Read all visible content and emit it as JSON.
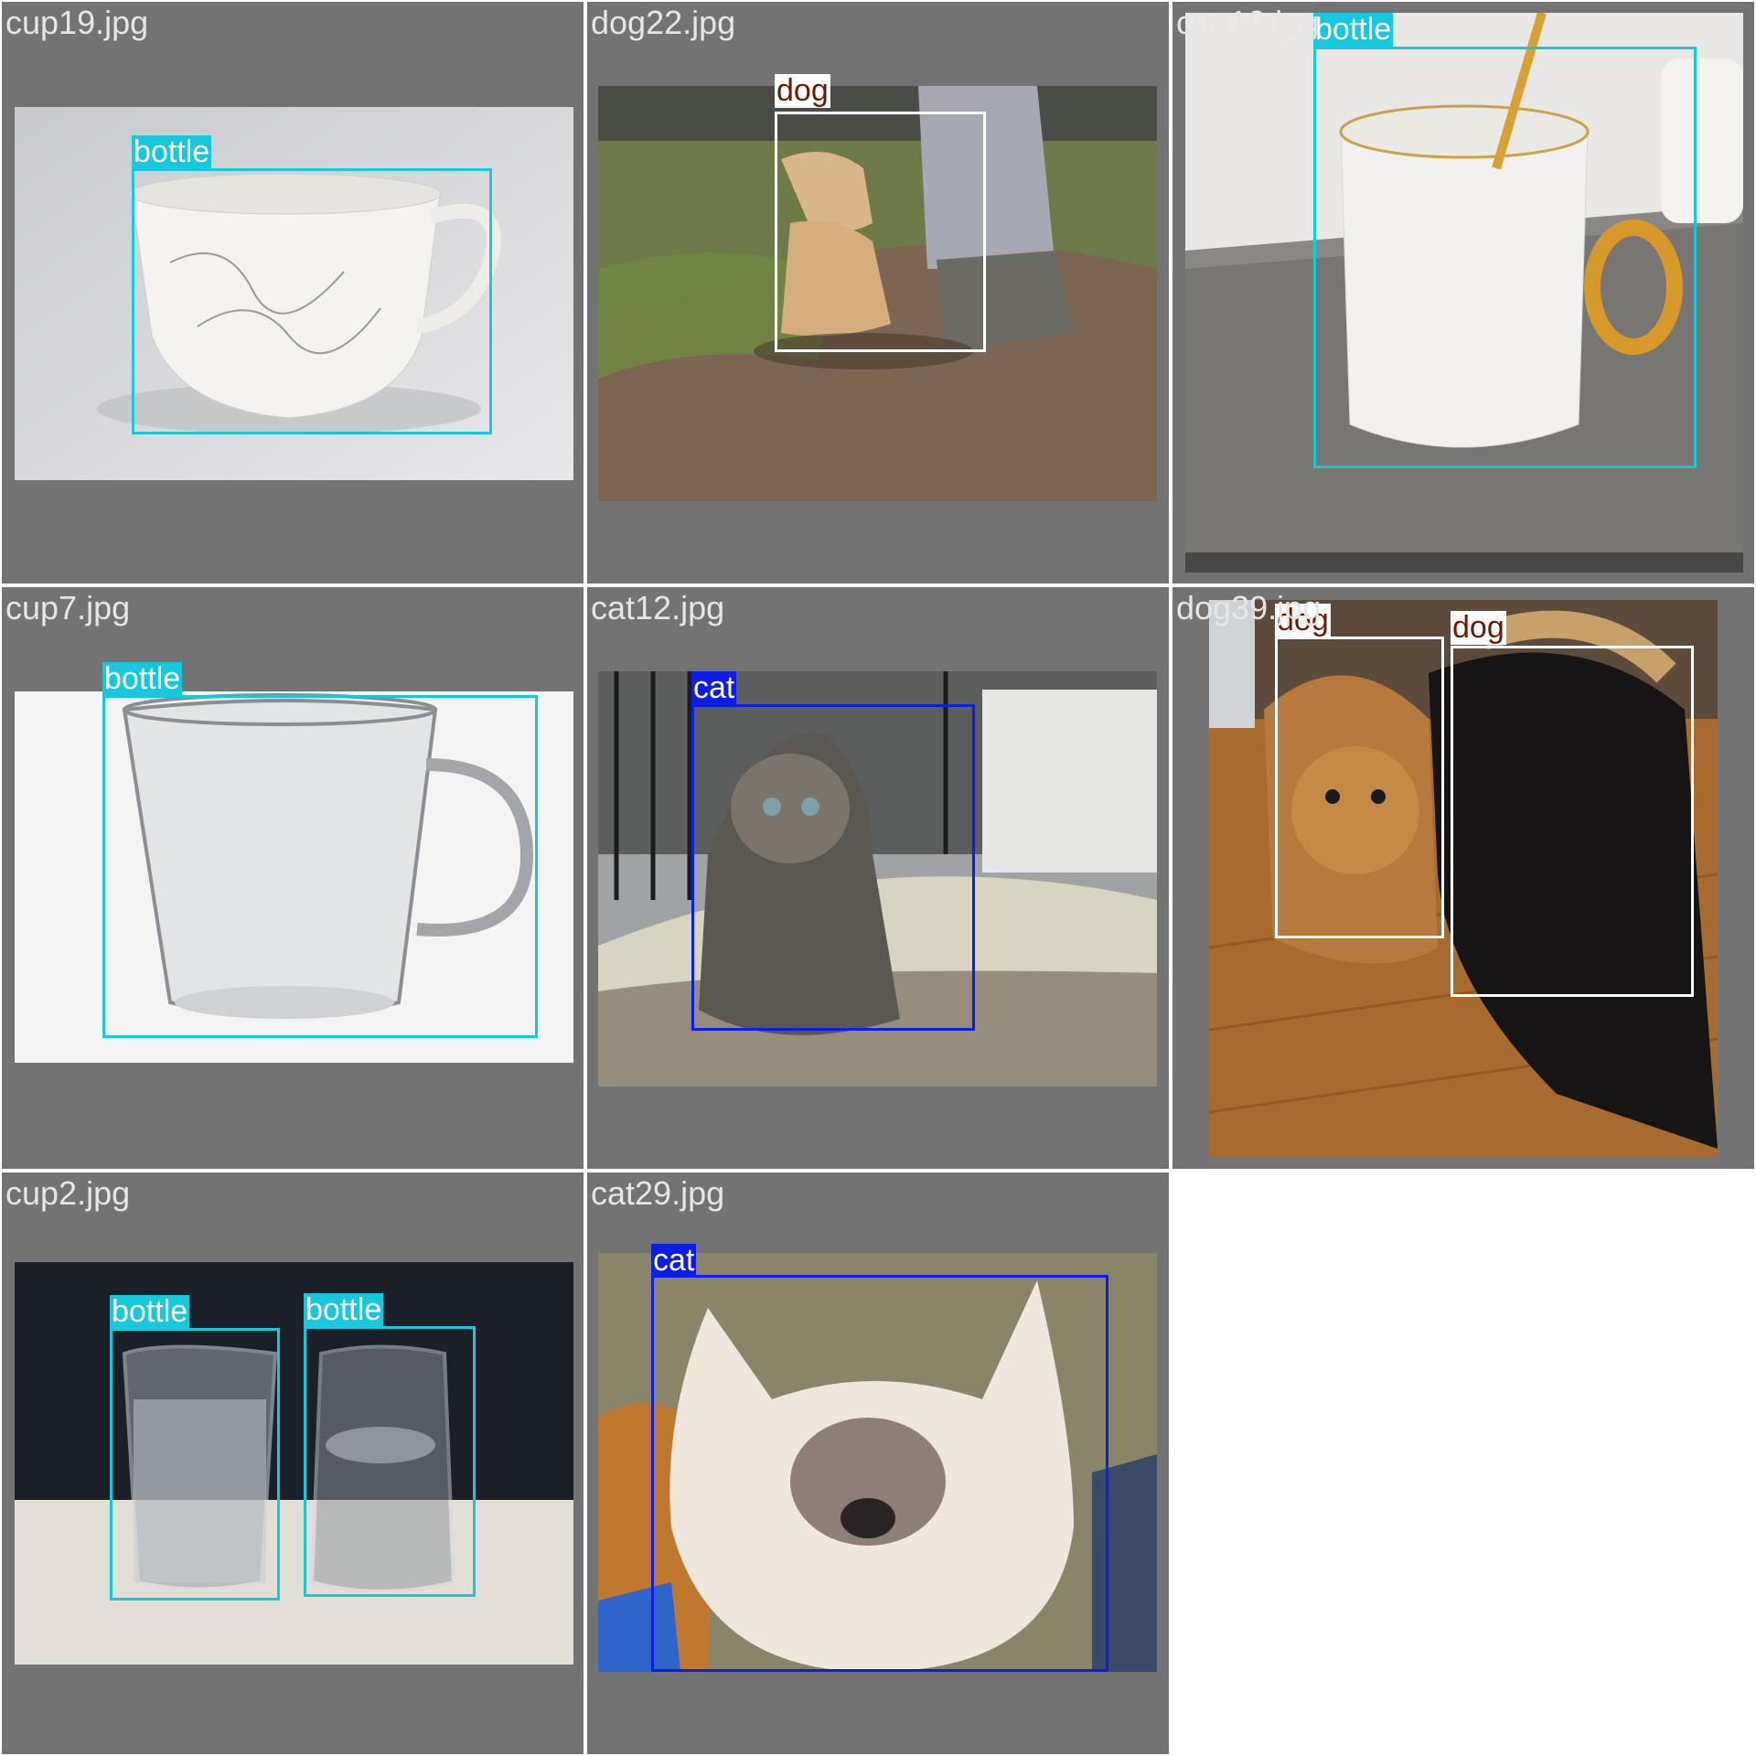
{
  "colors": {
    "tile_bg": "#737373",
    "page_bg": "#ffffff",
    "bottle": "#17c8dc",
    "cat": "#0d1de6",
    "dog": "#ffffff",
    "dog_text": "#6b1c05"
  },
  "tiles": [
    {
      "filename": "cup19.jpg",
      "detections": [
        {
          "label": "bottle"
        }
      ]
    },
    {
      "filename": "dog22.jpg",
      "detections": [
        {
          "label": "dog"
        }
      ]
    },
    {
      "filename": "cup10.jpg",
      "detections": [
        {
          "label": "bottle"
        }
      ]
    },
    {
      "filename": "cup7.jpg",
      "detections": [
        {
          "label": "bottle"
        }
      ]
    },
    {
      "filename": "cat12.jpg",
      "detections": [
        {
          "label": "cat"
        }
      ]
    },
    {
      "filename": "dog39.jpg",
      "detections": [
        {
          "label": "dog"
        },
        {
          "label": "dog"
        }
      ]
    },
    {
      "filename": "cup2.jpg",
      "detections": [
        {
          "label": "bottle"
        },
        {
          "label": "bottle"
        }
      ]
    },
    {
      "filename": "cat29.jpg",
      "detections": [
        {
          "label": "cat"
        }
      ]
    }
  ]
}
